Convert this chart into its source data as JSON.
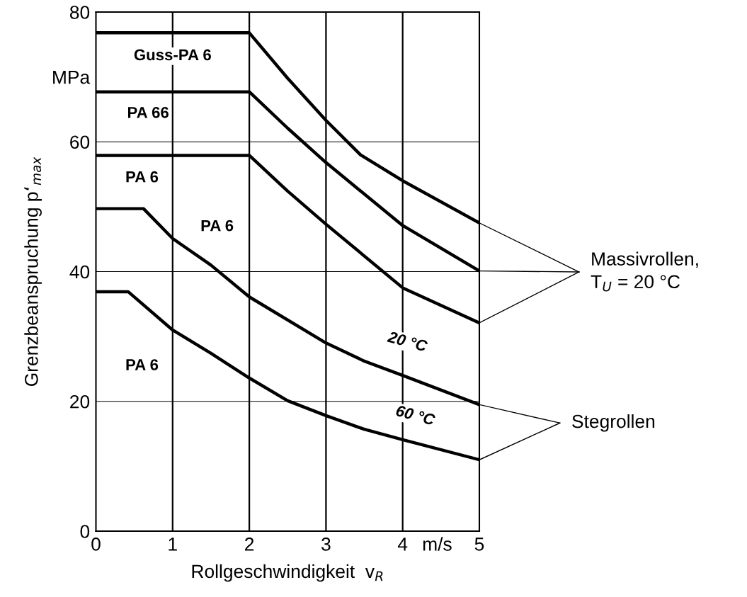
{
  "chart_data": {
    "type": "line",
    "xlabel": "Rollgeschwindigkeit  v$_{R}$",
    "ylabel": "Grenzbeanspruchung p‘$_{max}$",
    "series": [
      {
        "color": "#000000",
        "x": [
          0,
          2,
          2.5,
          3,
          3.45,
          4,
          5
        ],
        "values": [
          76.8,
          76.8,
          69.8,
          63.3,
          58.0,
          54.0,
          47.5
        ]
      },
      {
        "color": "#000000",
        "x": [
          0,
          2,
          2.5,
          3,
          4,
          5
        ],
        "values": [
          67.7,
          67.7,
          62.1,
          56.8,
          47.1,
          40.1
        ]
      },
      {
        "color": "#000000",
        "x": [
          0,
          2,
          2.5,
          3,
          4,
          5
        ],
        "values": [
          57.9,
          57.9,
          52.4,
          47.3,
          37.5,
          32.1
        ]
      },
      {
        "color": "#000000",
        "x": [
          0,
          0.62,
          1,
          1.5,
          2,
          3,
          3.5,
          4,
          5
        ],
        "values": [
          49.7,
          49.7,
          45.1,
          41.0,
          36.1,
          29.0,
          26.2,
          24.0,
          19.5
        ]
      },
      {
        "color": "#000000",
        "x": [
          0,
          0.42,
          1,
          1.5,
          2,
          2.5,
          3,
          3.5,
          4,
          5
        ],
        "values": [
          36.9,
          36.9,
          31.0,
          27.4,
          23.6,
          20.1,
          17.8,
          15.7,
          14.1,
          11.0
        ]
      }
    ],
    "xlim": [
      0,
      5
    ],
    "ylim": [
      0,
      80
    ],
    "xticks": [
      0,
      1,
      2,
      3,
      4,
      {
        "value": 4.45,
        "label": "m/s"
      },
      5
    ],
    "yticks": [
      0,
      20,
      40,
      60,
      {
        "value": 70,
        "label": "MPa"
      },
      80
    ],
    "grid": true,
    "marker": "none",
    "line_style": "solid",
    "legend": false,
    "annotations": [
      "Guss-PA 6",
      "PA 66",
      "PA 6",
      "PA 6",
      "PA 6",
      "20 °C",
      "60 °C",
      {
        "text": "Massivrollen,\nT$_{U}$ = 20 °C",
        "x": 5,
        "y": 40.1
      },
      {
        "text": "Stegrollen",
        "x": 5,
        "y": 19.5
      }
    ]
  }
}
